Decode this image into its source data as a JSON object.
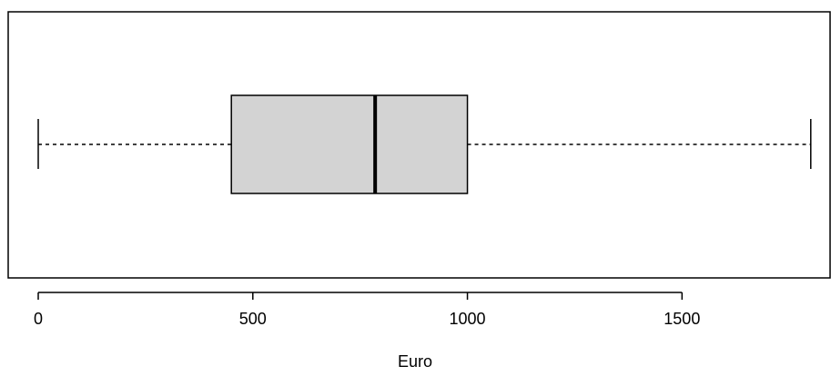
{
  "chart_data": {
    "type": "boxplot",
    "orientation": "horizontal",
    "xlabel": "Euro",
    "xlim": [
      -70,
      1845
    ],
    "xticks": [
      {
        "value": 0,
        "label": "0"
      },
      {
        "value": 500,
        "label": "500"
      },
      {
        "value": 1000,
        "label": "1000"
      },
      {
        "value": 1500,
        "label": "1500"
      }
    ],
    "box": {
      "min": 0,
      "q1": 450,
      "median": 785,
      "q3": 1000,
      "max": 1800
    },
    "colors": {
      "box_fill": "#d3d3d3",
      "stroke": "#000000"
    },
    "grid": false,
    "legend": "none"
  }
}
